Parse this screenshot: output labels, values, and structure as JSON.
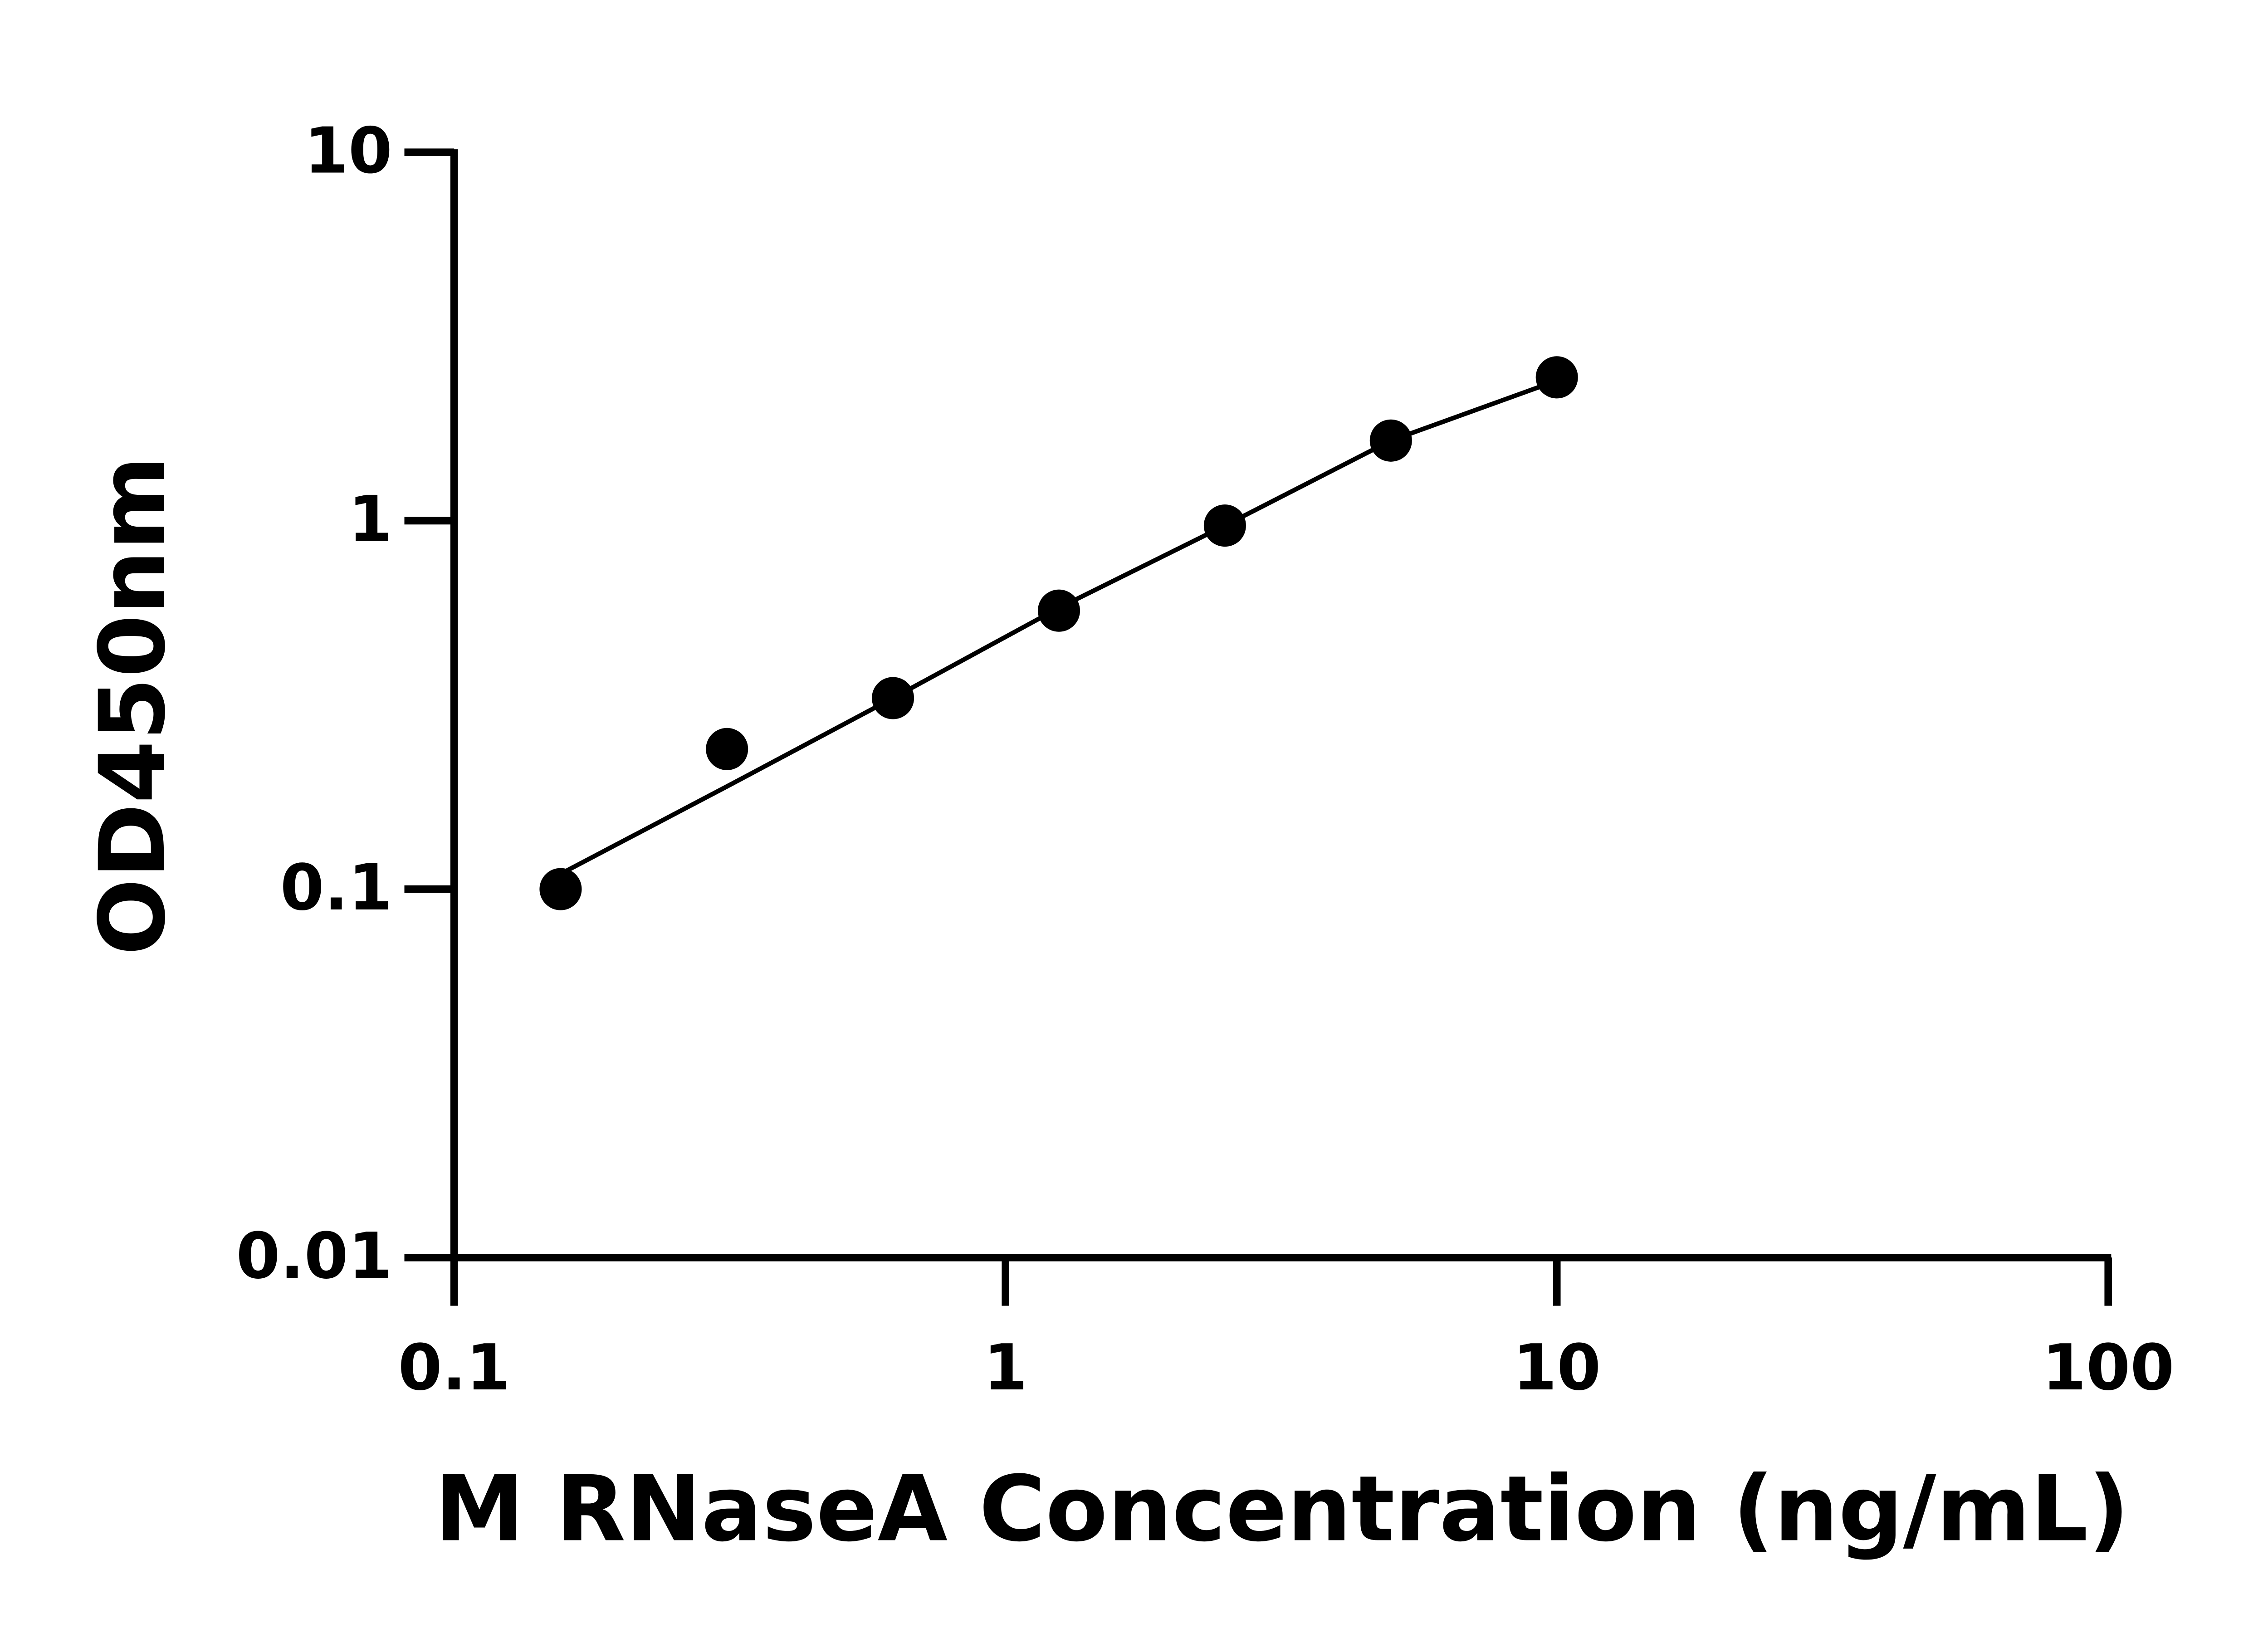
{
  "chart_data": {
    "type": "scatter",
    "x_label": "M RNaseA Concentration (ng/mL)",
    "y_label": "OD450nm",
    "x": [
      0.156,
      0.3125,
      0.625,
      1.25,
      2.5,
      5,
      10
    ],
    "series": [
      {
        "color": "#000000",
        "values": [
          0.1,
          0.24,
          0.33,
          0.57,
          0.97,
          1.65,
          2.45
        ]
      },
      {
        "color": "#000000",
        "style": "line",
        "values": [
          0.11,
          0.19,
          0.33,
          0.58,
          0.97,
          1.65,
          2.4
        ]
      }
    ],
    "xscale": "log",
    "yscale": "log",
    "xlim": [
      0.1,
      100
    ],
    "ylim": [
      0.01,
      10
    ],
    "xticks": [
      0.1,
      1,
      10,
      100
    ],
    "yticks": [
      0.01,
      0.1,
      1,
      10
    ],
    "grid": false
  }
}
